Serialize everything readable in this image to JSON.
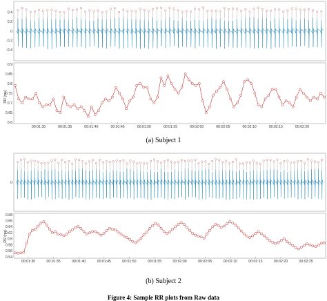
{
  "figure": {
    "caption_a": "(a) Subject 1",
    "caption_b": "(b) Subject 2",
    "figure_caption": "Figure 4: Sample RR plots from Raw data"
  },
  "chart_data": [
    {
      "type": "line",
      "panel": "Subject 1 raw signal",
      "ylim": [
        -0.6,
        0.6
      ],
      "yticks": [
        "0.4",
        "0.2",
        "0",
        "-0.2",
        "-0.4"
      ],
      "beats": 73,
      "line_color": "#2b8bb4",
      "marker_color": "#d08080"
    },
    {
      "type": "line",
      "panel": "Subject 1 RR intervals",
      "ylabel": "RR (ms)",
      "ylim": [
        0.6,
        0.9
      ],
      "yticks": [
        "0.9",
        "0.85",
        "0.8",
        "0.75",
        "0.7",
        "0.65",
        "0.6"
      ],
      "xticks": [
        "00:01:30",
        "00:01:35",
        "00:01:40",
        "00:01:45",
        "00:01:50",
        "00:01:55",
        "00:02:00",
        "00:02:05",
        "00:02:10",
        "00:02:15",
        "00:02:20"
      ],
      "values": [
        0.79,
        0.72,
        0.7,
        0.73,
        0.72,
        0.72,
        0.75,
        0.7,
        0.68,
        0.69,
        0.69,
        0.72,
        0.66,
        0.65,
        0.73,
        0.69,
        0.68,
        0.69,
        0.67,
        0.68,
        0.66,
        0.63,
        0.68,
        0.64,
        0.66,
        0.7,
        0.72,
        0.71,
        0.73,
        0.78,
        0.75,
        0.72,
        0.67,
        0.71,
        0.73,
        0.79,
        0.8,
        0.78,
        0.78,
        0.72,
        0.7,
        0.73,
        0.83,
        0.79,
        0.84,
        0.8,
        0.77,
        0.75,
        0.78,
        0.85,
        0.82,
        0.8,
        0.79,
        0.8,
        0.71,
        0.65,
        0.68,
        0.74,
        0.76,
        0.78,
        0.81,
        0.77,
        0.72,
        0.68,
        0.7,
        0.74,
        0.81,
        0.82,
        0.8,
        0.75,
        0.69,
        0.68,
        0.72,
        0.74,
        0.77,
        0.77,
        0.73,
        0.69,
        0.71,
        0.7,
        0.68,
        0.73,
        0.77,
        0.75,
        0.73,
        0.71,
        0.73,
        0.72,
        0.75,
        0.73
      ],
      "line_color": "#c03030"
    },
    {
      "type": "line",
      "panel": "Subject 2 raw signal",
      "ylim": [
        -0.6,
        0.6
      ],
      "yticks": [
        "0"
      ],
      "beats": 90,
      "line_color": "#2b8bb4",
      "marker_color": "#d08080"
    },
    {
      "type": "line",
      "panel": "Subject 2 RR intervals",
      "ylabel": "RR (ms)",
      "ylim": [
        0.54,
        0.68
      ],
      "yticks": [
        "0.68",
        "0.66",
        "0.64",
        "0.62",
        "0.6",
        "0.58",
        "0.56",
        "0.54"
      ],
      "xticks": [
        "00:01:30",
        "00:01:35",
        "00:01:40",
        "00:01:45",
        "00:01:50",
        "00:01:55",
        "00:02:00",
        "00:02:05",
        "00:02:10",
        "00:02:15",
        "00:02:20",
        "00:02:25"
      ],
      "values": [
        0.553,
        0.552,
        0.553,
        0.555,
        0.585,
        0.615,
        0.628,
        0.632,
        0.642,
        0.652,
        0.657,
        0.646,
        0.632,
        0.62,
        0.624,
        0.615,
        0.614,
        0.61,
        0.615,
        0.624,
        0.63,
        0.637,
        0.641,
        0.634,
        0.624,
        0.616,
        0.62,
        0.624,
        0.624,
        0.619,
        0.612,
        0.618,
        0.627,
        0.635,
        0.631,
        0.63,
        0.623,
        0.616,
        0.609,
        0.604,
        0.598,
        0.591,
        0.587,
        0.592,
        0.602,
        0.614,
        0.622,
        0.634,
        0.644,
        0.651,
        0.646,
        0.635,
        0.624,
        0.618,
        0.622,
        0.632,
        0.64,
        0.648,
        0.654,
        0.648,
        0.638,
        0.628,
        0.618,
        0.612,
        0.609,
        0.606,
        0.602,
        0.616,
        0.628,
        0.64,
        0.648,
        0.644,
        0.638,
        0.642,
        0.65,
        0.657,
        0.652,
        0.646,
        0.636,
        0.626,
        0.616,
        0.608,
        0.604,
        0.61,
        0.618,
        0.624,
        0.617,
        0.61,
        0.602,
        0.594,
        0.588,
        0.584,
        0.588,
        0.595,
        0.6,
        0.59,
        0.584,
        0.577,
        0.571,
        0.566,
        0.572,
        0.578,
        0.583,
        0.58,
        0.576,
        0.574,
        0.579,
        0.585,
        0.587
      ],
      "line_color": "#c03030"
    }
  ]
}
